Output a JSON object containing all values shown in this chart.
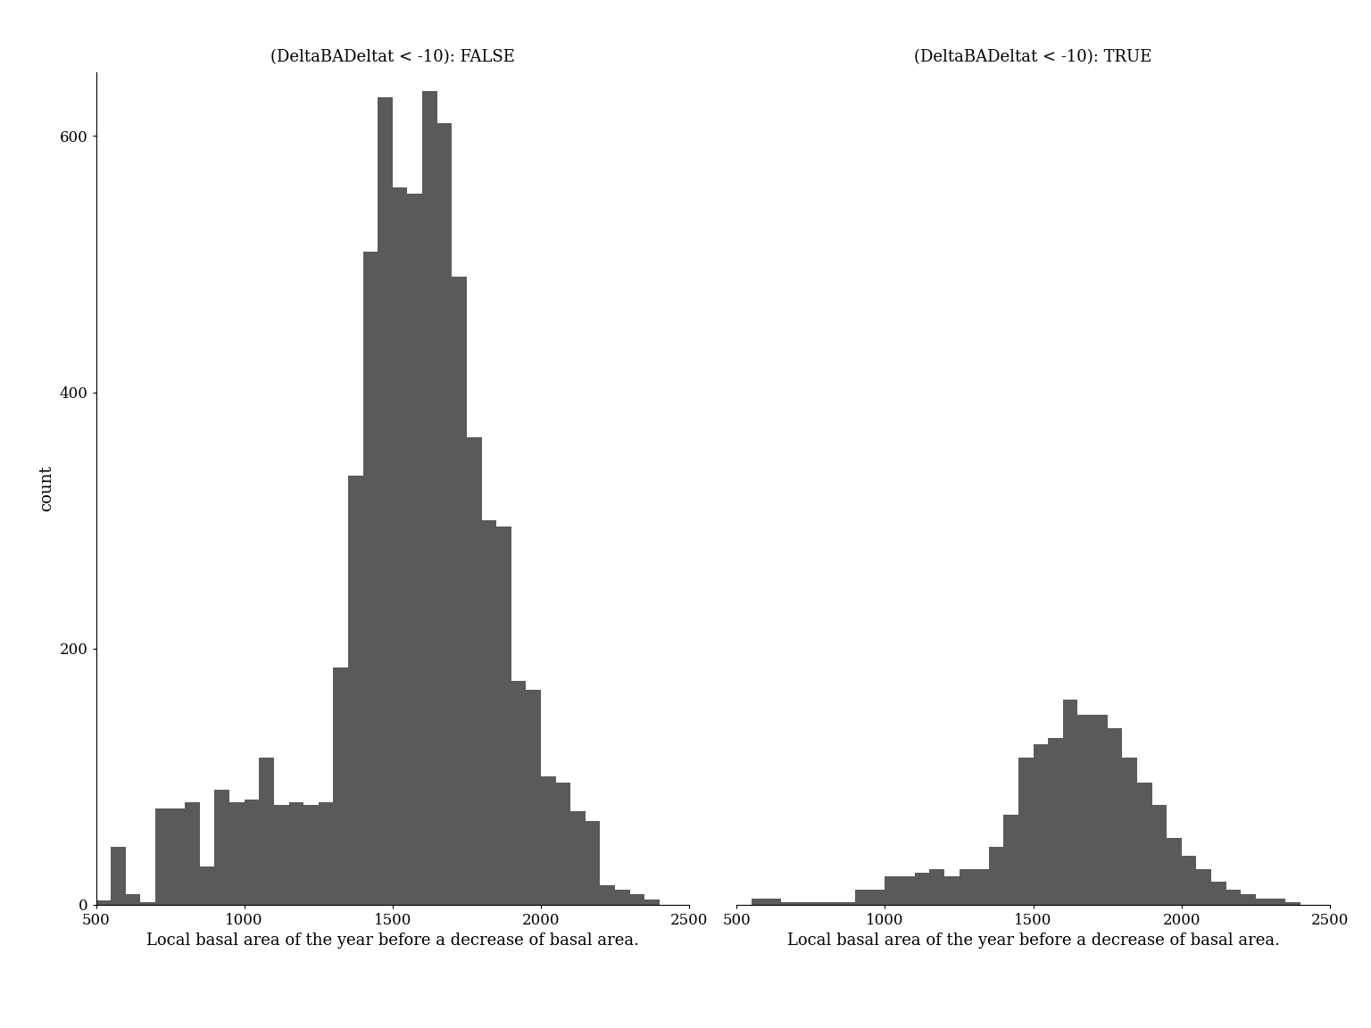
{
  "title_false": "(DeltaBADeltat < -10): FALSE",
  "title_true": "(DeltaBADeltat < -10): TRUE",
  "xlabel": "Local basal area of the year before a decrease of basal area.",
  "ylabel": "count",
  "bar_color": "#5a5a5a",
  "xlim": [
    500,
    2500
  ],
  "ylim": [
    0,
    650
  ],
  "background_color": "#ffffff",
  "bin_edges": [
    500,
    550,
    600,
    650,
    700,
    750,
    800,
    850,
    900,
    950,
    1000,
    1050,
    1100,
    1150,
    1200,
    1250,
    1300,
    1350,
    1400,
    1450,
    1500,
    1550,
    1600,
    1650,
    1700,
    1750,
    1800,
    1850,
    1900,
    1950,
    2000,
    2050,
    2100,
    2150,
    2200,
    2250,
    2300,
    2350,
    2400,
    2450,
    2500
  ],
  "counts_false": [
    3,
    45,
    8,
    2,
    75,
    75,
    80,
    30,
    90,
    80,
    82,
    115,
    78,
    80,
    78,
    80,
    185,
    335,
    510,
    630,
    560,
    555,
    635,
    610,
    490,
    365,
    300,
    295,
    175,
    168,
    100,
    95,
    73,
    65,
    15,
    12,
    8,
    4,
    0,
    0
  ],
  "counts_true": [
    0,
    5,
    5,
    2,
    2,
    2,
    2,
    2,
    12,
    12,
    22,
    22,
    25,
    28,
    22,
    28,
    28,
    45,
    70,
    115,
    125,
    130,
    160,
    148,
    148,
    138,
    115,
    95,
    78,
    52,
    38,
    28,
    18,
    12,
    8,
    5,
    5,
    2,
    0,
    0
  ],
  "xticks": [
    500,
    1000,
    1500,
    2000,
    2500
  ],
  "yticks": [
    0,
    200,
    400,
    600
  ],
  "title_fontsize": 13,
  "label_fontsize": 13,
  "tick_fontsize": 12
}
